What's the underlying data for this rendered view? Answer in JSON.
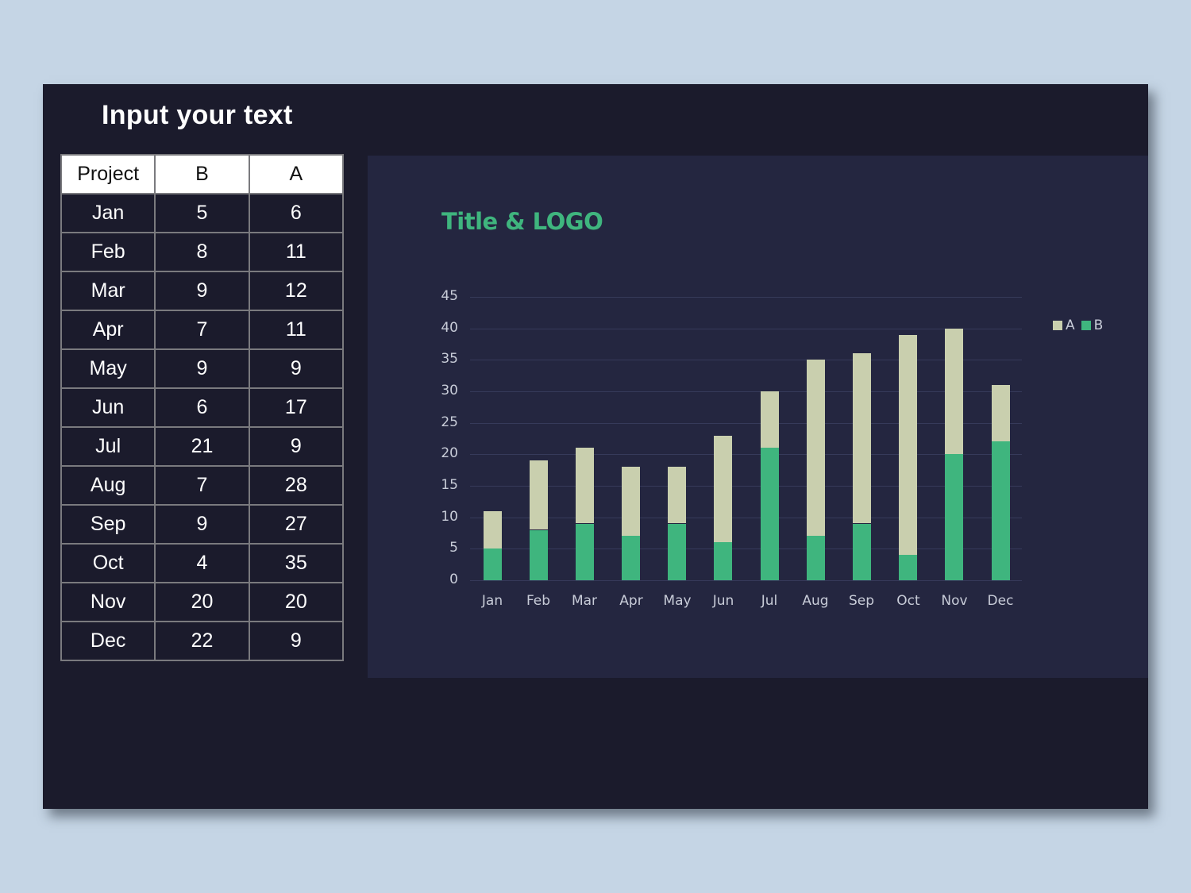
{
  "slide": {
    "title": "Input your text",
    "background": "#1b1b2c",
    "page_background": "#c5d5e5"
  },
  "table": {
    "headers": [
      "Project",
      "B",
      "A"
    ],
    "rows": [
      [
        "Jan",
        "5",
        "6"
      ],
      [
        "Feb",
        "8",
        "11"
      ],
      [
        "Mar",
        "9",
        "12"
      ],
      [
        "Apr",
        "7",
        "11"
      ],
      [
        "May",
        "9",
        "9"
      ],
      [
        "Jun",
        "6",
        "17"
      ],
      [
        "Jul",
        "21",
        "9"
      ],
      [
        "Aug",
        "7",
        "28"
      ],
      [
        "Sep",
        "9",
        "27"
      ],
      [
        "Oct",
        "4",
        "35"
      ],
      [
        "Nov",
        "20",
        "20"
      ],
      [
        "Dec",
        "22",
        "9"
      ]
    ]
  },
  "chart_data": {
    "type": "bar",
    "stacked": true,
    "title": "Title & LOGO",
    "xlabel": "",
    "ylabel": "",
    "categories": [
      "Jan",
      "Feb",
      "Mar",
      "Apr",
      "May",
      "Jun",
      "Jul",
      "Aug",
      "Sep",
      "Oct",
      "Nov",
      "Dec"
    ],
    "series": [
      {
        "name": "B",
        "color": "#3fb57e",
        "values": [
          5,
          8,
          9,
          7,
          9,
          6,
          21,
          7,
          9,
          4,
          20,
          22
        ]
      },
      {
        "name": "A",
        "color": "#c9cfae",
        "values": [
          6,
          11,
          12,
          11,
          9,
          17,
          9,
          28,
          27,
          35,
          20,
          9
        ]
      }
    ],
    "ylim": [
      0,
      45
    ],
    "yticks": [
      "0",
      "5",
      "10",
      "15",
      "20",
      "25",
      "30",
      "35",
      "40",
      "45"
    ],
    "grid": true,
    "legend": {
      "position": "top-right",
      "entries": [
        "A",
        "B"
      ]
    },
    "title_color": "#3fb57e",
    "panel_background": "#242640"
  }
}
